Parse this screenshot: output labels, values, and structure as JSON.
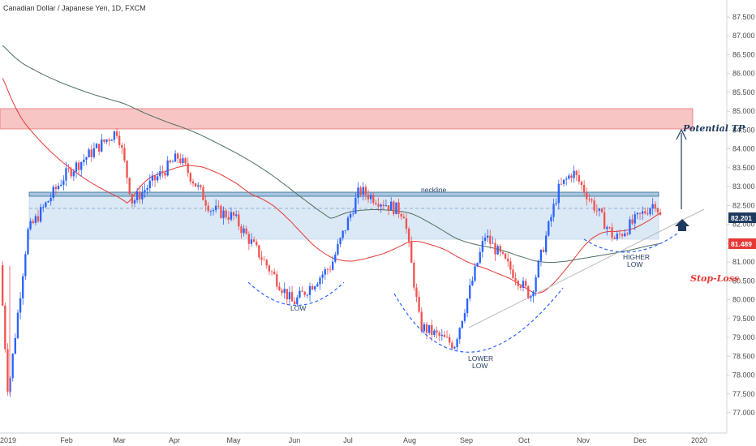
{
  "header": {
    "title": "Canadian Dollar / Japanese Yen, 1D, FXCM"
  },
  "colors": {
    "up": "#2962ff",
    "down": "#ef5350",
    "ma_dark": "#4e6e5e",
    "ma_red": "#e53935",
    "resistance_zone": "#f8c5c5",
    "neckline_zone": "#dbe8f5",
    "neckline": "#2e6b99",
    "badge_price": "#1f3a5f",
    "badge_ma": "#e53935"
  },
  "annotations": {
    "neckline": "neckline",
    "low": "LOW",
    "lower_low_1": "LOWER",
    "lower_low_2": "LOW",
    "higher_low_1": "HIGHER",
    "higher_low_2": "LOW",
    "potential_tp": "Potential TP",
    "stop_loss": "Stop-Loss"
  },
  "badges": {
    "last_price": "82.201",
    "ma_value": "81.489"
  },
  "chart_data": {
    "type": "candlestick",
    "title": "Canadian Dollar / Japanese Yen, 1D, FXCM",
    "y_axis": {
      "ticks": [
        "87.500",
        "87.000",
        "86.500",
        "86.000",
        "85.500",
        "85.000",
        "84.500",
        "84.000",
        "83.500",
        "83.000",
        "82.500",
        "82.000",
        "81.500",
        "81.000",
        "80.500",
        "80.000",
        "79.500",
        "79.000",
        "78.500",
        "78.000",
        "77.500",
        "77.000"
      ],
      "range": [
        76.8,
        87.8
      ]
    },
    "x_axis": {
      "ticks": [
        "2019",
        "Feb",
        "Mar",
        "Apr",
        "May",
        "Jun",
        "Jul",
        "Aug",
        "Sep",
        "Oct",
        "Nov",
        "Dec",
        "2020"
      ]
    },
    "zones": [
      {
        "name": "resistance",
        "low": 84.55,
        "high": 85.1
      },
      {
        "name": "neckline",
        "low": 81.6,
        "high": 82.85
      }
    ],
    "levels": {
      "neckline": 82.8,
      "potential_tp": 84.5,
      "last_close": 82.2
    },
    "price_path": [
      {
        "t": "2019",
        "v": 81.6
      },
      {
        "t": "Jan-low",
        "v": 77.5
      },
      {
        "t": "Jan",
        "v": 81.8
      },
      {
        "t": "Feb",
        "v": 83.3
      },
      {
        "t": "Mar",
        "v": 84.5
      },
      {
        "t": "Mar-end",
        "v": 82.6
      },
      {
        "t": "Apr",
        "v": 83.8
      },
      {
        "t": "Apr-end",
        "v": 82.4
      },
      {
        "t": "May",
        "v": 82.2
      },
      {
        "t": "Jun",
        "v": 79.9
      },
      {
        "t": "Jun-end",
        "v": 80.9
      },
      {
        "t": "Jul",
        "v": 82.9
      },
      {
        "t": "Aug",
        "v": 82.3
      },
      {
        "t": "Aug-low",
        "v": 79.3
      },
      {
        "t": "Sep",
        "v": 78.8
      },
      {
        "t": "Sep-end",
        "v": 81.7
      },
      {
        "t": "Oct",
        "v": 80.1
      },
      {
        "t": "Oct-end",
        "v": 82.9
      },
      {
        "t": "Nov",
        "v": 83.4
      },
      {
        "t": "Nov-end",
        "v": 81.6
      },
      {
        "t": "Dec",
        "v": 82.6
      },
      {
        "t": "Dec-last",
        "v": 82.2
      }
    ]
  }
}
